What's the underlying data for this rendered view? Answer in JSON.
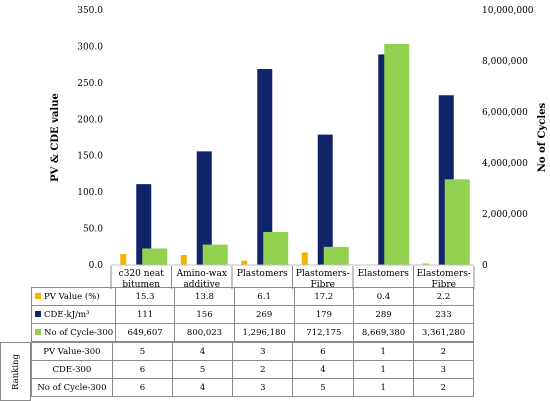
{
  "chart_data": {
    "type": "bar",
    "categories": [
      [
        "c320 neat",
        "bitumen"
      ],
      [
        "Amino-wax",
        "additive"
      ],
      [
        "Plastomers"
      ],
      [
        "Plastomers-",
        "Fibre"
      ],
      [
        "Elastomers"
      ],
      [
        "Elastomers-",
        "Fibre"
      ]
    ],
    "ylabel_left": "PV & CDE value",
    "ylabel_right": "No of Cycles",
    "ylim_left": [
      0,
      350
    ],
    "ylim_right": [
      0,
      10000000
    ],
    "yticks_left": [
      "0.0",
      "50.0",
      "100.0",
      "150.0",
      "200.0",
      "250.0",
      "300.0",
      "350.0"
    ],
    "yticks_right": [
      "0",
      "2,000,000",
      "4,000,000",
      "6,000,000",
      "8,000,000",
      "10,000,000"
    ],
    "series": [
      {
        "name": "PV Value (%)",
        "axis": "left",
        "color": "#f5b400",
        "values": [
          15.3,
          13.8,
          6.1,
          17.2,
          0.4,
          2.2
        ]
      },
      {
        "name": "CDE-kJ/m³",
        "axis": "left",
        "color": "#10246a",
        "values": [
          111,
          156,
          269,
          179,
          289,
          233
        ]
      },
      {
        "name": "No of Cycle-300",
        "axis": "right",
        "color": "#92d050",
        "values": [
          649607,
          800023,
          1296180,
          712175,
          8669380,
          3361280
        ]
      }
    ]
  },
  "table": {
    "rows": [
      {
        "label": "PV Value (%)",
        "color": "#f5b400",
        "cells": [
          "15.3",
          "13.8",
          "6.1",
          "17.2",
          "0.4",
          "2.2"
        ]
      },
      {
        "label": "CDE-kJ/m³",
        "color": "#10246a",
        "cells": [
          "111",
          "156",
          "269",
          "179",
          "289",
          "233"
        ]
      },
      {
        "label": "No of Cycle-300",
        "color": "#92d050",
        "cells": [
          "649,607",
          "800,023",
          "1,296,180",
          "712,175",
          "8,669,380",
          "3,361,280"
        ]
      }
    ]
  },
  "ranking": {
    "side_label": "Ranking",
    "rows": [
      {
        "label": "PV Value-300",
        "cells": [
          "5",
          "4",
          "3",
          "6",
          "1",
          "2"
        ]
      },
      {
        "label": "CDE-300",
        "cells": [
          "6",
          "5",
          "2",
          "4",
          "1",
          "3"
        ]
      },
      {
        "label": "No of Cycle-300",
        "cells": [
          "6",
          "4",
          "3",
          "5",
          "1",
          "2"
        ]
      }
    ]
  }
}
